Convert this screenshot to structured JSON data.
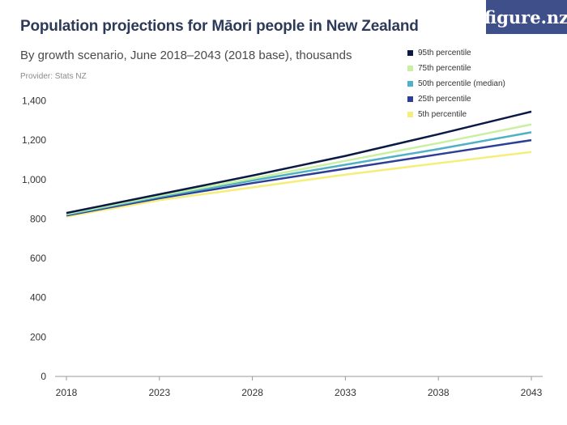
{
  "header": {
    "title": "Population projections for Māori people in New Zealand",
    "subtitle": "By growth scenario, June 2018–2043 (2018 base), thousands",
    "provider": "Provider: Stats NZ",
    "brand": "figure.nz"
  },
  "chart_data": {
    "type": "line",
    "title": "Population projections for Māori people in New Zealand",
    "subtitle": "By growth scenario, June 2018–2043 (2018 base), thousands",
    "xlabel": "",
    "ylabel": "",
    "x": [
      2018,
      2023,
      2028,
      2033,
      2038,
      2043
    ],
    "x_ticks": [
      "2018",
      "2023",
      "2028",
      "2033",
      "2038",
      "2043"
    ],
    "y_ticks": [
      "0",
      "200",
      "400",
      "600",
      "800",
      "1,000",
      "1,200",
      "1,400"
    ],
    "ylim": [
      0,
      1400
    ],
    "grid": "horizontal baseline only",
    "legend_position": "top-right",
    "series": [
      {
        "name": "95th percentile",
        "color": "#0b1a44",
        "values": [
          830,
          925,
          1020,
          1120,
          1230,
          1345
        ]
      },
      {
        "name": "75th percentile",
        "color": "#c8f0a0",
        "values": [
          825,
          918,
          1005,
          1095,
          1185,
          1280
        ]
      },
      {
        "name": "50th percentile (median)",
        "color": "#4fb0c6",
        "values": [
          822,
          912,
          995,
          1075,
          1155,
          1240
        ]
      },
      {
        "name": "25th percentile",
        "color": "#2d3e96",
        "values": [
          818,
          905,
          982,
          1055,
          1128,
          1200
        ]
      },
      {
        "name": "5th percentile",
        "color": "#f6ee7a",
        "values": [
          812,
          895,
          960,
          1025,
          1083,
          1140
        ]
      }
    ]
  }
}
